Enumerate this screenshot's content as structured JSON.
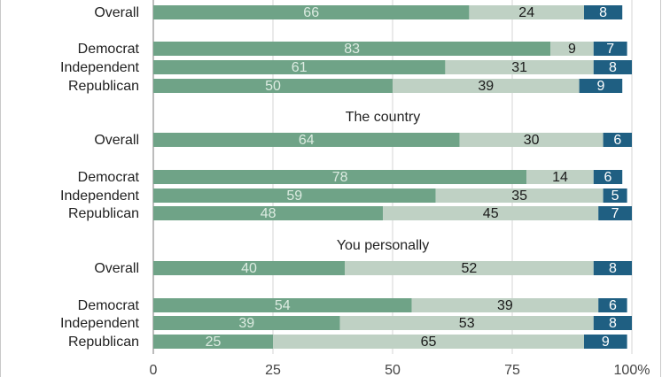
{
  "chart_data": {
    "type": "bar",
    "orientation": "horizontal",
    "stacked": true,
    "title": "",
    "xlabel": "",
    "ylabel": "",
    "xlim": [
      0,
      100
    ],
    "x_ticks": [
      "0",
      "25",
      "50",
      "75",
      "100%"
    ],
    "grid": true,
    "colors": [
      "#6fa387",
      "#bfd1c4",
      "#1f5f82"
    ],
    "sections": [
      {
        "heading": "",
        "rows": [
          {
            "label": "Overall",
            "values": [
              66,
              24,
              8
            ]
          },
          {
            "label": "Democrat",
            "values": [
              83,
              9,
              7
            ]
          },
          {
            "label": "Independent",
            "values": [
              61,
              31,
              8
            ]
          },
          {
            "label": "Republican",
            "values": [
              50,
              39,
              9
            ]
          }
        ]
      },
      {
        "heading": "The country",
        "rows": [
          {
            "label": "Overall",
            "values": [
              64,
              30,
              6
            ]
          },
          {
            "label": "Democrat",
            "values": [
              78,
              14,
              6
            ]
          },
          {
            "label": "Independent",
            "values": [
              59,
              35,
              5
            ]
          },
          {
            "label": "Republican",
            "values": [
              48,
              45,
              7
            ]
          }
        ]
      },
      {
        "heading": "You personally",
        "rows": [
          {
            "label": "Overall",
            "values": [
              40,
              52,
              8
            ]
          },
          {
            "label": "Democrat",
            "values": [
              54,
              39,
              6
            ]
          },
          {
            "label": "Independent",
            "values": [
              39,
              53,
              8
            ]
          },
          {
            "label": "Republican",
            "values": [
              25,
              65,
              9
            ]
          }
        ]
      }
    ]
  }
}
